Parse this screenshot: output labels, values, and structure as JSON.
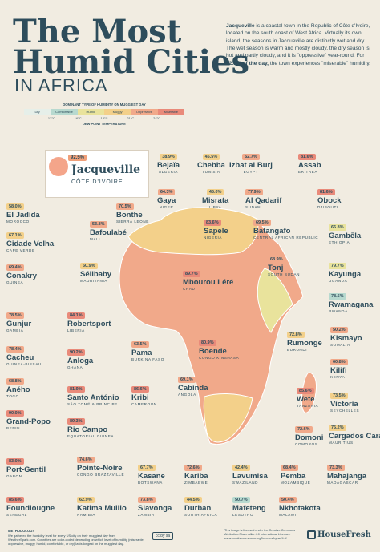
{
  "header": {
    "title_line1": "The Most",
    "title_line2": "Humid Cities",
    "title_line3": "IN AFRICA",
    "intro_lead": "Jacqueville",
    "intro_text": " is a coastal town in the Republic of Côte d'Ivoire, located on the south coast of West Africa. Virtually its own island, the seasons in Jacqueville are distinctly wet and dry. The wet season is warm and mostly cloudy, the dry season is hot and partly cloudy, and it is \"oppressive\" year-round. For ",
    "intro_bold": "92.5% of the day,",
    "intro_end": " the town experiences \"miserable\" humidity."
  },
  "legend": {
    "title": "DOMINANT TYPE OF HUMIDITY ON MUGGIEST DAY",
    "levels": [
      {
        "label": "Dry",
        "color": "#e6efe9"
      },
      {
        "label": "Comfortable",
        "color": "#b7d9cf"
      },
      {
        "label": "Humid",
        "color": "#e9e39c"
      },
      {
        "label": "Muggy",
        "color": "#f3d08a"
      },
      {
        "label": "Oppressive",
        "color": "#f1a98a"
      },
      {
        "label": "Miserable",
        "color": "#e98a7a"
      }
    ],
    "ticks": [
      "13°C",
      "16°C",
      "18°C",
      "21°C",
      "24°C"
    ],
    "footer": "DEW POINT TEMPERATURE"
  },
  "featured": {
    "pct": "92.5%",
    "city": "Jacqueville",
    "country": "CÔTE D'IVOIRE"
  },
  "cities": [
    {
      "pct": "38.9%",
      "city": "Bejaïa",
      "country": "ALGERIA",
      "color": "#f3d08a"
    },
    {
      "pct": "45.5%",
      "city": "Chebba",
      "country": "TUNISIA",
      "color": "#f3d08a"
    },
    {
      "pct": "52.7%",
      "city": "Izbat al Burj",
      "country": "EGYPT",
      "color": "#f1a98a"
    },
    {
      "pct": "81.6%",
      "city": "Assab",
      "country": "ERITREA",
      "color": "#e98a7a"
    },
    {
      "pct": "58.0%",
      "city": "El Jadida",
      "country": "MOROCCO",
      "color": "#f3d08a"
    },
    {
      "pct": "70.5%",
      "city": "Bonthe",
      "country": "SIERRA LEONE",
      "color": "#f1a98a"
    },
    {
      "pct": "64.3%",
      "city": "Gaya",
      "country": "NIGER",
      "color": "#f1a98a"
    },
    {
      "pct": "45.0%",
      "city": "Misrata",
      "country": "LIBYA",
      "color": "#f3d08a"
    },
    {
      "pct": "77.9%",
      "city": "Al Qadarif",
      "country": "SUDAN",
      "color": "#f1a98a"
    },
    {
      "pct": "81.6%",
      "city": "Obock",
      "country": "DJIBOUTI",
      "color": "#e98a7a"
    },
    {
      "pct": "53.8%",
      "city": "Bafoulabé",
      "country": "MALI",
      "color": "#f1a98a"
    },
    {
      "pct": "67.1%",
      "city": "Cidade Velha",
      "country": "CAPE VERDE",
      "color": "#f3d08a"
    },
    {
      "pct": "83.6%",
      "city": "Sapele",
      "country": "NIGERIA",
      "color": "#e98a7a"
    },
    {
      "pct": "69.5%",
      "city": "Batangafo",
      "country": "CENTRAL AFRICAN REPUBLIC",
      "color": "#f1a98a"
    },
    {
      "pct": "66.8%",
      "city": "Gambēla",
      "country": "ETHIOPIA",
      "color": "#e9e39c"
    },
    {
      "pct": "69.4%",
      "city": "Conakry",
      "country": "GUINEA",
      "color": "#f1a98a"
    },
    {
      "pct": "60.9%",
      "city": "Sélibaby",
      "country": "MAURITANIA",
      "color": "#f3d08a"
    },
    {
      "pct": "68.9%",
      "city": "Tonj",
      "country": "SOUTH SUDAN",
      "color": "#f1a98a"
    },
    {
      "pct": "79.7%",
      "city": "Kayunga",
      "country": "UGANDA",
      "color": "#e9e39c"
    },
    {
      "pct": "89.7%",
      "city": "Mbourou Léré",
      "country": "CHAD",
      "color": "#e98a7a"
    },
    {
      "pct": "78.5%",
      "city": "Rwamagana",
      "country": "RWANDA",
      "color": "#b7d9cf"
    },
    {
      "pct": "78.5%",
      "city": "Gunjur",
      "country": "GAMBIA",
      "color": "#f1a98a"
    },
    {
      "pct": "84.1%",
      "city": "Robertsport",
      "country": "LIBERIA",
      "color": "#e98a7a"
    },
    {
      "pct": "50.2%",
      "city": "Kismayo",
      "country": "SOMALIA",
      "color": "#f1a98a"
    },
    {
      "pct": "72.8%",
      "city": "Rumonge",
      "country": "BURUNDI",
      "color": "#f3d08a"
    },
    {
      "pct": "78.4%",
      "city": "Cacheu",
      "country": "GUINEA-BISSAU",
      "color": "#f1a98a"
    },
    {
      "pct": "90.2%",
      "city": "Anloga",
      "country": "GHANA",
      "color": "#e98a7a"
    },
    {
      "pct": "63.5%",
      "city": "Pama",
      "country": "BURKINA FASO",
      "color": "#f1a98a"
    },
    {
      "pct": "80.9%",
      "city": "Boende",
      "country": "CONGO KINSHASA",
      "color": "#e98a7a"
    },
    {
      "pct": "60.8%",
      "city": "Kilifi",
      "country": "KENYA",
      "color": "#f1a98a"
    },
    {
      "pct": "68.8%",
      "city": "Aného",
      "country": "TOGO",
      "color": "#f1a98a"
    },
    {
      "pct": "81.9%",
      "city": "Santo António",
      "country": "SÃO TOMÉ & PRÍNCIPE",
      "color": "#e98a7a"
    },
    {
      "pct": "86.6%",
      "city": "Kribi",
      "country": "CAMEROON",
      "color": "#e98a7a"
    },
    {
      "pct": "69.1%",
      "city": "Cabinda",
      "country": "ANGOLA",
      "color": "#f1a98a"
    },
    {
      "pct": "85.6%",
      "city": "Wete",
      "country": "TANZANIA",
      "color": "#e98a7a"
    },
    {
      "pct": "73.5%",
      "city": "Victoria",
      "country": "SEYCHELLES",
      "color": "#f3d08a"
    },
    {
      "pct": "90.0%",
      "city": "Grand-Popo",
      "country": "BENIN",
      "color": "#e98a7a"
    },
    {
      "pct": "89.3%",
      "city": "Rio Campo",
      "country": "EQUATORIAL GUINEA",
      "color": "#e98a7a"
    },
    {
      "pct": "72.6%",
      "city": "Domoni",
      "country": "COMOROS",
      "color": "#f1a98a"
    },
    {
      "pct": "75.2%",
      "city": "Cargados Carajos",
      "country": "MAURITIUS",
      "color": "#f3d08a"
    },
    {
      "pct": "83.0%",
      "city": "Port-Gentil",
      "country": "GABON",
      "color": "#e98a7a"
    },
    {
      "pct": "74.6%",
      "city": "Pointe-Noire",
      "country": "CONGO BRAZZAVILLE",
      "color": "#f1a98a"
    },
    {
      "pct": "67.7%",
      "city": "Kasane",
      "country": "BOTSWANA",
      "color": "#f3d08a"
    },
    {
      "pct": "72.6%",
      "city": "Kariba",
      "country": "ZIMBABWE",
      "color": "#f1a98a"
    },
    {
      "pct": "42.4%",
      "city": "Lavumisa",
      "country": "SWAZILAND",
      "color": "#f3d08a"
    },
    {
      "pct": "68.4%",
      "city": "Pemba",
      "country": "MOZAMBIQUE",
      "color": "#f1a98a"
    },
    {
      "pct": "73.3%",
      "city": "Mahajanga",
      "country": "MADAGASCAR",
      "color": "#f1a98a"
    },
    {
      "pct": "85.6%",
      "city": "Foundiougne",
      "country": "SENEGAL",
      "color": "#e98a7a"
    },
    {
      "pct": "62.9%",
      "city": "Katima Mulilo",
      "country": "NAMIBIA",
      "color": "#f3d08a"
    },
    {
      "pct": "73.8%",
      "city": "Siavonga",
      "country": "ZAMBIA",
      "color": "#f1a98a"
    },
    {
      "pct": "44.5%",
      "city": "Durban",
      "country": "SOUTH AFRICA",
      "color": "#f3d08a"
    },
    {
      "pct": "50.7%",
      "city": "Mafeteng",
      "country": "LESOTHO",
      "color": "#b7d9cf"
    },
    {
      "pct": "50.4%",
      "city": "Nkhotakota",
      "country": "MALAWI",
      "color": "#f1a98a"
    }
  ],
  "footer": {
    "methodology_title": "METHODOLOGY",
    "methodology_text": "We gathered the humidity level for every US city on their muggiest day from WeatherSpark.com. Countries are color-coded depending on which level of humidity (miserable, oppressive, muggy, humid, comfortable, or dry) lasts longest on the muggiest day.",
    "license_text": "This image is licensed under the Creative Commons Attribution-Share Alike 4.0 International License - www.creativecommons.org/licenses/by-sa/4.0/",
    "cc_label": "cc by sa",
    "brand": "HouseFresh"
  }
}
